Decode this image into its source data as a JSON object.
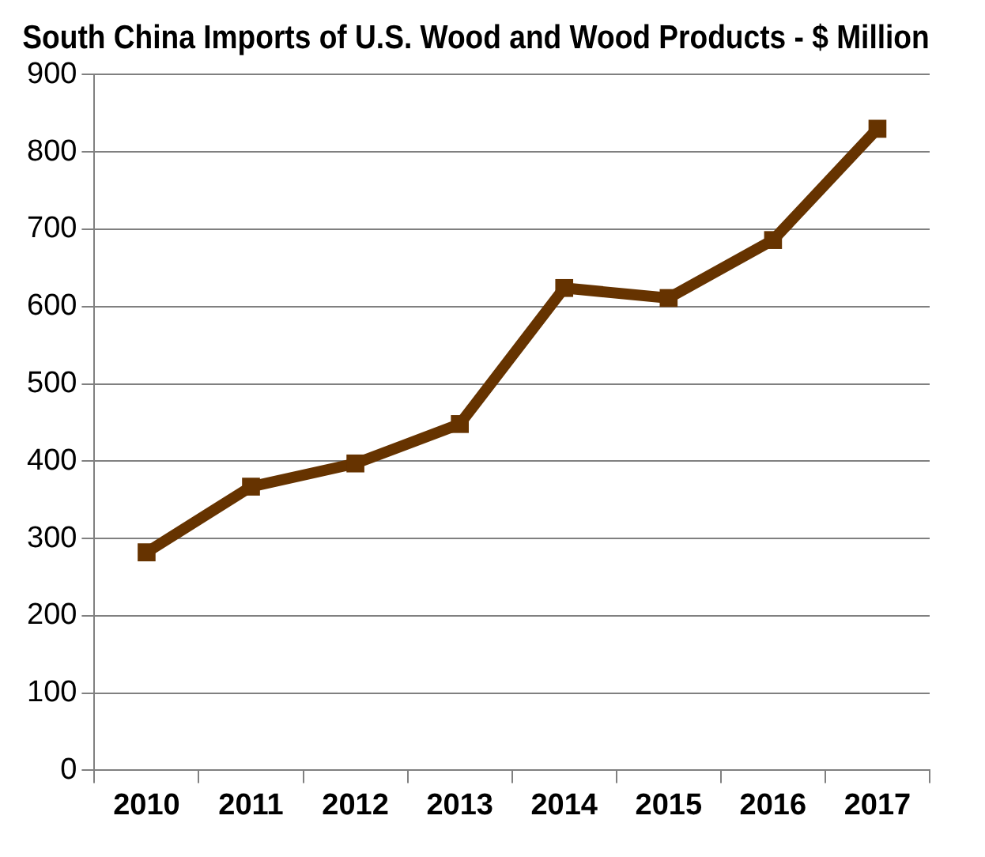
{
  "chart_data": {
    "type": "line",
    "title": "South China Imports of U.S. Wood and Wood Products - $ Million",
    "categories": [
      "2010",
      "2011",
      "2012",
      "2013",
      "2014",
      "2015",
      "2016",
      "2017"
    ],
    "series": [
      {
        "color": "#663300",
        "values": [
          282,
          367,
          397,
          448,
          624,
          611,
          686,
          830
        ]
      }
    ],
    "ylim": [
      0,
      900
    ],
    "yticks": [
      0,
      100,
      200,
      300,
      400,
      500,
      600,
      700,
      800,
      900
    ],
    "grid": "y",
    "legend": false,
    "marker": "square",
    "line_style": "solid"
  }
}
